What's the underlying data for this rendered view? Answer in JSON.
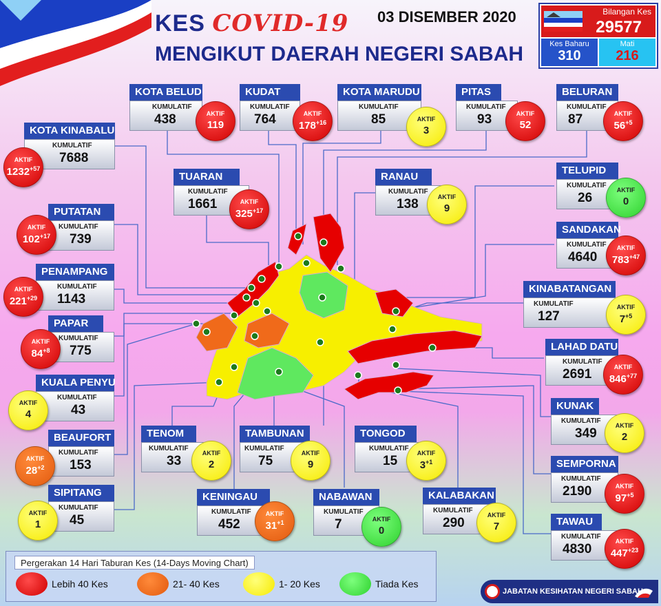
{
  "header": {
    "title_prefix": "KES",
    "title_covid": "COVID-19",
    "subtitle": "MENGIKUT DAERAH NEGERI SABAH",
    "date": "03 DISEMBER 2020"
  },
  "summary": {
    "total_label": "Bilangan Kes",
    "total_value": "29577",
    "new_label": "Kes Baharu",
    "new_value": "310",
    "death_label": "Mati",
    "death_value": "216"
  },
  "labels": {
    "cumulative": "KUMULATIF",
    "active": "AKTIF"
  },
  "districts": [
    {
      "name": "KOTA BELUD",
      "cumulative": "438",
      "active": "119",
      "delta": "",
      "level": "red"
    },
    {
      "name": "KUDAT",
      "cumulative": "764",
      "active": "178",
      "delta": "+16",
      "level": "red"
    },
    {
      "name": "KOTA MARUDU",
      "cumulative": "85",
      "active": "3",
      "delta": "",
      "level": "yellow"
    },
    {
      "name": "PITAS",
      "cumulative": "93",
      "active": "52",
      "delta": "",
      "level": "red"
    },
    {
      "name": "BELURAN",
      "cumulative": "87",
      "active": "56",
      "delta": "+5",
      "level": "red"
    },
    {
      "name": "KOTA KINABALU",
      "cumulative": "7688",
      "active": "1232",
      "delta": "+57",
      "level": "red"
    },
    {
      "name": "TUARAN",
      "cumulative": "1661",
      "active": "325",
      "delta": "+17",
      "level": "red"
    },
    {
      "name": "RANAU",
      "cumulative": "138",
      "active": "9",
      "delta": "",
      "level": "yellow"
    },
    {
      "name": "TELUPID",
      "cumulative": "26",
      "active": "0",
      "delta": "",
      "level": "green"
    },
    {
      "name": "PUTATAN",
      "cumulative": "739",
      "active": "102",
      "delta": "+17",
      "level": "red"
    },
    {
      "name": "SANDAKAN",
      "cumulative": "4640",
      "active": "783",
      "delta": "+47",
      "level": "red"
    },
    {
      "name": "PENAMPANG",
      "cumulative": "1143",
      "active": "221",
      "delta": "+29",
      "level": "red"
    },
    {
      "name": "KINABATANGAN",
      "cumulative": "127",
      "active": "7",
      "delta": "+5",
      "level": "yellow"
    },
    {
      "name": "PAPAR",
      "cumulative": "775",
      "active": "84",
      "delta": "+8",
      "level": "red"
    },
    {
      "name": "LAHAD DATU",
      "cumulative": "2691",
      "active": "846",
      "delta": "+77",
      "level": "red"
    },
    {
      "name": "KUALA PENYU",
      "cumulative": "43",
      "active": "4",
      "delta": "",
      "level": "yellow"
    },
    {
      "name": "KUNAK",
      "cumulative": "349",
      "active": "2",
      "delta": "",
      "level": "yellow"
    },
    {
      "name": "BEAUFORT",
      "cumulative": "153",
      "active": "28",
      "delta": "+2",
      "level": "orange"
    },
    {
      "name": "TENOM",
      "cumulative": "33",
      "active": "2",
      "delta": "",
      "level": "yellow"
    },
    {
      "name": "TAMBUNAN",
      "cumulative": "75",
      "active": "9",
      "delta": "",
      "level": "yellow"
    },
    {
      "name": "TONGOD",
      "cumulative": "15",
      "active": "3",
      "delta": "+1",
      "level": "yellow"
    },
    {
      "name": "SEMPORNA",
      "cumulative": "2190",
      "active": "97",
      "delta": "+5",
      "level": "red"
    },
    {
      "name": "SIPITANG",
      "cumulative": "45",
      "active": "1",
      "delta": "",
      "level": "yellow"
    },
    {
      "name": "KENINGAU",
      "cumulative": "452",
      "active": "31",
      "delta": "+1",
      "level": "orange"
    },
    {
      "name": "NABAWAN",
      "cumulative": "7",
      "active": "0",
      "delta": "",
      "level": "green"
    },
    {
      "name": "KALABAKAN",
      "cumulative": "290",
      "active": "7",
      "delta": "",
      "level": "yellow"
    },
    {
      "name": "TAWAU",
      "cumulative": "4830",
      "active": "447",
      "delta": "+23",
      "level": "red"
    }
  ],
  "legend": {
    "title": "Pergerakan 14 Hari Taburan Kes (14-Days Moving Chart)",
    "items": [
      {
        "label": "Lebih 40 Kes",
        "color": "#e60000"
      },
      {
        "label": "21- 40 Kes",
        "color": "#f06a1a"
      },
      {
        "label": "1- 20 Kes",
        "color": "#f7ef00"
      },
      {
        "label": "Tiada Kes",
        "color": "#5fe85f"
      }
    ]
  },
  "footer": {
    "agency": "JABATAN KESIHATAN NEGERI SABAH"
  },
  "colors": {
    "red": "#e60000",
    "orange": "#f06a1a",
    "yellow": "#f7ef00",
    "green": "#5fe85f",
    "header_blue": "#2b4bb0"
  }
}
